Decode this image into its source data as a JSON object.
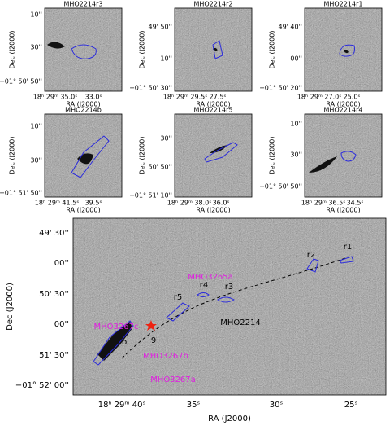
{
  "panels": [
    {
      "title": "MHO2214r3",
      "yticks": [
        "10''",
        "30''",
        "−01° 50' 50''"
      ],
      "xticks": [
        "18ʰ 29ᵐ 35.0ˢ",
        "33.0ˢ"
      ],
      "xlabel": "RA (J2000)",
      "ylabel": "Dec (J2000)"
    },
    {
      "title": "MHO2214r2",
      "yticks": [
        "49' 50''",
        "10''",
        "−01° 50' 30''"
      ],
      "xticks": [
        "18ʰ 29ᵐ 29.5ˢ",
        "27.5ˢ"
      ],
      "xlabel": "RA (J2000)",
      "ylabel": "Dec (J2000)"
    },
    {
      "title": "MHO2214r1",
      "yticks": [
        "49' 40''",
        "00''",
        "−01° 50' 20''"
      ],
      "xticks": [
        "18ʰ 29ᵐ 27.0ˢ",
        "25.0ˢ"
      ],
      "xlabel": "RA (J2000)",
      "ylabel": "Dec (J2000)"
    },
    {
      "title": "MHO2214b",
      "yticks": [
        "10''",
        "30''",
        "−01° 51' 50''"
      ],
      "xticks": [
        "18ʰ 29ᵐ 41.5ˢ",
        "39.5ˢ"
      ],
      "xlabel": "RA (J2000)",
      "ylabel": "Dec (J2000)"
    },
    {
      "title": "MHO2214r5",
      "yticks": [
        "30''",
        "50' 50''",
        "−01° 51' 10''"
      ],
      "xticks": [
        "18ʰ 29ᵐ 38.0ˢ",
        "36.0ˢ"
      ],
      "xlabel": "RA (J2000)",
      "ylabel": "Dec (J2000)"
    },
    {
      "title": "MHO2214r4",
      "yticks": [
        "10''",
        "30''",
        "−01° 50' 50''"
      ],
      "xticks": [
        "18ʰ 29ᵐ 36.5ˢ",
        "34.5ˢ"
      ],
      "xlabel": "RA (J2000)",
      "ylabel": "Dec (J2000)"
    }
  ],
  "main": {
    "yticks": [
      "49' 30''",
      "00''",
      "50' 30''",
      "00''",
      "51' 30''",
      "−01° 52' 00''"
    ],
    "xticks": [
      "18ʰ 29ᵐ 40ˢ",
      "35ˢ",
      "30ˢ",
      "25ˢ"
    ],
    "xlabel": "RA (J2000)",
    "ylabel": "Dec (J2000)",
    "labels": [
      "r1",
      "r2",
      "r3",
      "r4",
      "r5",
      "b",
      "9",
      "MHO2214"
    ],
    "magenta_labels": [
      "MHO3265a",
      "MHO3267c",
      "MHO3267b",
      "MHO3267a"
    ]
  }
}
